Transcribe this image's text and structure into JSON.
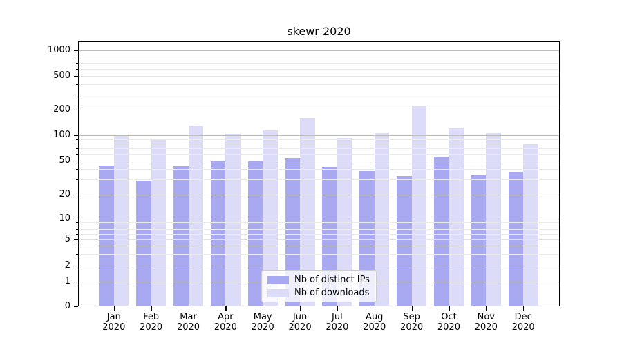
{
  "title": "skewr 2020",
  "chart_data": {
    "type": "bar",
    "title": "skewr 2020",
    "year": "2020",
    "categories": [
      "Jan",
      "Feb",
      "Mar",
      "Apr",
      "May",
      "Jun",
      "Jul",
      "Aug",
      "Sep",
      "Oct",
      "Nov",
      "Dec"
    ],
    "series": [
      {
        "name": "Nb of distinct IPs",
        "color": "#a9a9f1",
        "values": [
          44,
          29,
          43,
          50,
          50,
          54,
          42,
          38,
          33,
          56,
          34,
          37
        ]
      },
      {
        "name": "Nb of downloads",
        "color": "#dcdcf8",
        "values": [
          100,
          88,
          130,
          103,
          113,
          160,
          93,
          105,
          225,
          120,
          105,
          80
        ]
      }
    ],
    "y_ticks": [
      0,
      1,
      2,
      5,
      10,
      20,
      50,
      100,
      200,
      500,
      1000
    ],
    "y_scale": "symlog",
    "ylim": [
      0,
      1400
    ],
    "xlabel": "",
    "ylabel": "",
    "grid": true,
    "legend_position": "lower-center"
  },
  "colors": {
    "bar_dark": "#a9a9f1",
    "bar_light": "#dcdcf8",
    "grid_major": "#bbbbbb",
    "grid_sub": "#e3e3e3",
    "grid_minor": "#ebebeb",
    "spine": "#000000",
    "legend_border": "#cccccc"
  }
}
